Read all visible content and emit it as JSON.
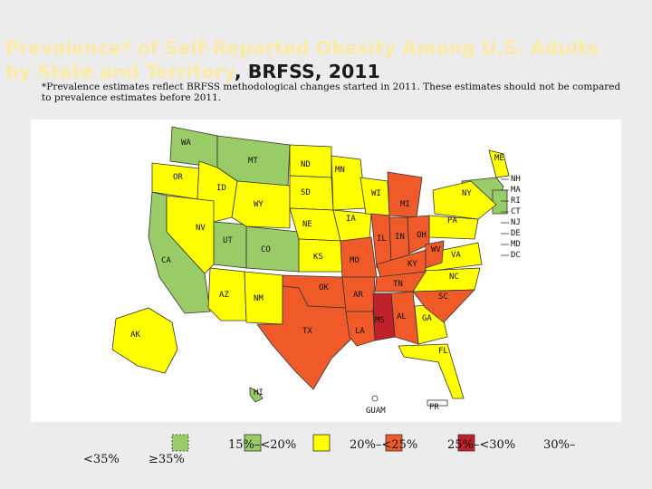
{
  "title": {
    "prefix": "Prevalence* of Self-Reported Obesity Among U.S. Adults",
    "line2_start": "by State and Territory",
    "line2_end": ", BRFSS, 2011"
  },
  "footnote": "*Prevalence estimates reflect BRFSS methodological changes started in 2011. These estimates should not be compared to prevalence estimates before 2011.",
  "colors": {
    "green": "#99cc66",
    "yellow": "#ffff00",
    "orange": "#ef5a28",
    "red": "#c0202a",
    "nodata": "#ffffff"
  },
  "map": {
    "state_labels": [
      "WA",
      "MT",
      "ND",
      "MN",
      "ME",
      "OR",
      "ID",
      "SD",
      "WI",
      "NY",
      "MI",
      "WY",
      "IA",
      "PA",
      "NE",
      "NV",
      "UT",
      "IL",
      "IN",
      "OH",
      "CO",
      "KS",
      "MO",
      "KY",
      "WV",
      "VA",
      "CA",
      "NC",
      "TN",
      "OK",
      "AZ",
      "NM",
      "AR",
      "SC",
      "MS",
      "AL",
      "GA",
      "TX",
      "LA",
      "AK",
      "FL",
      "HI",
      "GUAM",
      "PR"
    ],
    "northeast_labels": [
      "NH",
      "MA",
      "RI",
      "CT",
      "NJ",
      "DE",
      "MD",
      "DC"
    ]
  },
  "legend": {
    "items": [
      {
        "label": "<35%"
      },
      {
        "label": "≥35%"
      },
      {
        "label": "15%–<20%"
      },
      {
        "label": "20%–<25%"
      },
      {
        "label": "25%–<30%"
      },
      {
        "label": "30%–"
      }
    ]
  }
}
